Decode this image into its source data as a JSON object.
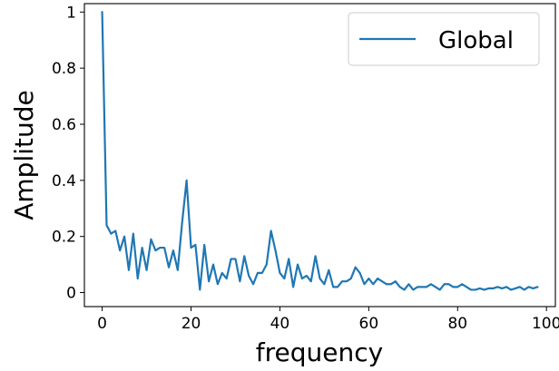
{
  "chart_data": {
    "type": "line",
    "title": "",
    "xlabel": "frequency",
    "ylabel": "Amplitude",
    "xlim": [
      -4,
      102
    ],
    "ylim": [
      -0.05,
      1.03
    ],
    "xticks": [
      0,
      20,
      40,
      60,
      80,
      100
    ],
    "yticks": [
      0,
      0.2,
      0.4,
      0.6,
      0.8,
      1
    ],
    "xtick_labels": [
      "0",
      "20",
      "40",
      "60",
      "80",
      "100"
    ],
    "ytick_labels": [
      "0",
      "0.2",
      "0.4",
      "0.6",
      "0.8",
      "1"
    ],
    "grid": false,
    "legend_position": "top-right",
    "series": [
      {
        "name": "Global",
        "color": "#1f77b4",
        "x": [
          0,
          1,
          2,
          3,
          4,
          5,
          6,
          7,
          8,
          9,
          10,
          11,
          12,
          13,
          14,
          15,
          16,
          17,
          18,
          19,
          20,
          21,
          22,
          23,
          24,
          25,
          26,
          27,
          28,
          29,
          30,
          31,
          32,
          33,
          34,
          35,
          36,
          37,
          38,
          39,
          40,
          41,
          42,
          43,
          44,
          45,
          46,
          47,
          48,
          49,
          50,
          51,
          52,
          53,
          54,
          55,
          56,
          57,
          58,
          59,
          60,
          61,
          62,
          63,
          64,
          65,
          66,
          67,
          68,
          69,
          70,
          71,
          72,
          73,
          74,
          75,
          76,
          77,
          78,
          79,
          80,
          81,
          82,
          83,
          84,
          85,
          86,
          87,
          88,
          89,
          90,
          91,
          92,
          93,
          94,
          95,
          96,
          97,
          98
        ],
        "y": [
          1.0,
          0.24,
          0.21,
          0.22,
          0.15,
          0.2,
          0.08,
          0.21,
          0.05,
          0.16,
          0.08,
          0.19,
          0.15,
          0.16,
          0.16,
          0.09,
          0.15,
          0.08,
          0.25,
          0.4,
          0.16,
          0.17,
          0.01,
          0.17,
          0.04,
          0.1,
          0.03,
          0.07,
          0.05,
          0.12,
          0.12,
          0.04,
          0.13,
          0.06,
          0.03,
          0.07,
          0.07,
          0.1,
          0.22,
          0.15,
          0.07,
          0.05,
          0.12,
          0.02,
          0.1,
          0.05,
          0.06,
          0.04,
          0.13,
          0.05,
          0.03,
          0.08,
          0.02,
          0.02,
          0.04,
          0.04,
          0.05,
          0.09,
          0.07,
          0.03,
          0.05,
          0.03,
          0.05,
          0.04,
          0.03,
          0.03,
          0.04,
          0.02,
          0.01,
          0.03,
          0.01,
          0.02,
          0.02,
          0.02,
          0.03,
          0.02,
          0.01,
          0.03,
          0.03,
          0.02,
          0.02,
          0.03,
          0.02,
          0.01,
          0.01,
          0.015,
          0.01,
          0.015,
          0.015,
          0.02,
          0.015,
          0.02,
          0.01,
          0.015,
          0.02,
          0.01,
          0.02,
          0.015,
          0.02
        ]
      }
    ]
  }
}
